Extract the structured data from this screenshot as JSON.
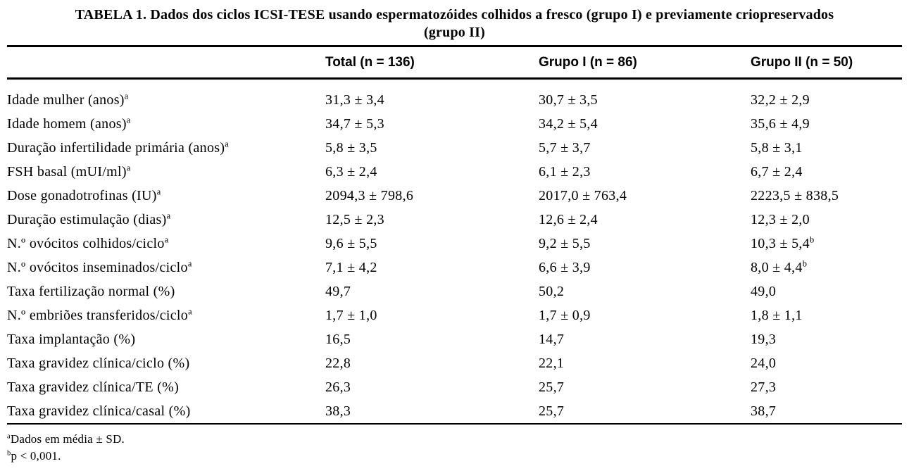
{
  "title": {
    "line1": "TABELA 1. Dados dos ciclos ICSI-TESE usando espermatozóides colhidos a fresco (grupo I) e previamente criopreservados",
    "line2": "(grupo II)"
  },
  "table": {
    "columns": {
      "label": "",
      "total": "Total (n = 136)",
      "grupo1": "Grupo I (n = 86)",
      "grupo2": "Grupo II (n = 50)"
    },
    "rows": [
      {
        "label": "Idade mulher (anos)",
        "label_sup": "a",
        "total": "31,3 ± 3,4",
        "grupo1": "30,7 ± 3,5",
        "grupo2": "32,2 ± 2,9",
        "grupo2_sup": ""
      },
      {
        "label": "Idade homem (anos)",
        "label_sup": "a",
        "total": "34,7 ± 5,3",
        "grupo1": "34,2 ± 5,4",
        "grupo2": "35,6 ± 4,9",
        "grupo2_sup": ""
      },
      {
        "label": "Duração infertilidade primária (anos)",
        "label_sup": "a",
        "total": "5,8 ± 3,5",
        "grupo1": "5,7 ± 3,7",
        "grupo2": "5,8 ± 3,1",
        "grupo2_sup": ""
      },
      {
        "label": "FSH basal (mUI/ml)",
        "label_sup": "a",
        "total": "6,3 ± 2,4",
        "grupo1": "6,1 ± 2,3",
        "grupo2": "6,7 ± 2,4",
        "grupo2_sup": ""
      },
      {
        "label": "Dose gonadotrofinas (IU)",
        "label_sup": "a",
        "total": "2094,3 ± 798,6",
        "grupo1": "2017,0 ± 763,4",
        "grupo2": "2223,5 ± 838,5",
        "grupo2_sup": ""
      },
      {
        "label": "Duração estimulação (dias)",
        "label_sup": "a",
        "total": "12,5 ± 2,3",
        "grupo1": "12,6 ± 2,4",
        "grupo2": "12,3 ± 2,0",
        "grupo2_sup": ""
      },
      {
        "label": "N.º ovócitos colhidos/ciclo",
        "label_sup": "a",
        "total": "9,6 ± 5,5",
        "grupo1": "9,2 ± 5,5",
        "grupo2": "10,3 ± 5,4",
        "grupo2_sup": "b"
      },
      {
        "label": "N.º ovócitos inseminados/ciclo",
        "label_sup": "a",
        "total": "7,1 ± 4,2",
        "grupo1": "6,6 ± 3,9",
        "grupo2": "8,0 ± 4,4",
        "grupo2_sup": "b"
      },
      {
        "label": "Taxa fertilização normal (%)",
        "label_sup": "",
        "total": "49,7",
        "grupo1": "50,2",
        "grupo2": "49,0",
        "grupo2_sup": ""
      },
      {
        "label": "N.º embriões transferidos/ciclo",
        "label_sup": "a",
        "total": "1,7 ± 1,0",
        "grupo1": "1,7 ± 0,9",
        "grupo2": "1,8 ± 1,1",
        "grupo2_sup": ""
      },
      {
        "label": "Taxa implantação (%)",
        "label_sup": "",
        "total": "16,5",
        "grupo1": "14,7",
        "grupo2": "19,3",
        "grupo2_sup": ""
      },
      {
        "label": "Taxa gravidez clínica/ciclo (%)",
        "label_sup": "",
        "total": "22,8",
        "grupo1": "22,1",
        "grupo2": "24,0",
        "grupo2_sup": ""
      },
      {
        "label": "Taxa gravidez clínica/TE (%)",
        "label_sup": "",
        "total": "26,3",
        "grupo1": "25,7",
        "grupo2": "27,3",
        "grupo2_sup": ""
      },
      {
        "label": "Taxa gravidez clínica/casal (%)",
        "label_sup": "",
        "total": "38,3",
        "grupo1": "25,7",
        "grupo2": "38,7",
        "grupo2_sup": ""
      }
    ]
  },
  "footnotes": [
    {
      "sup": "a",
      "text": "Dados em média ± SD."
    },
    {
      "sup": "b",
      "text": "p < 0,001."
    }
  ],
  "colors": {
    "background": "#ffffff",
    "text": "#000000",
    "rule": "#000000"
  }
}
